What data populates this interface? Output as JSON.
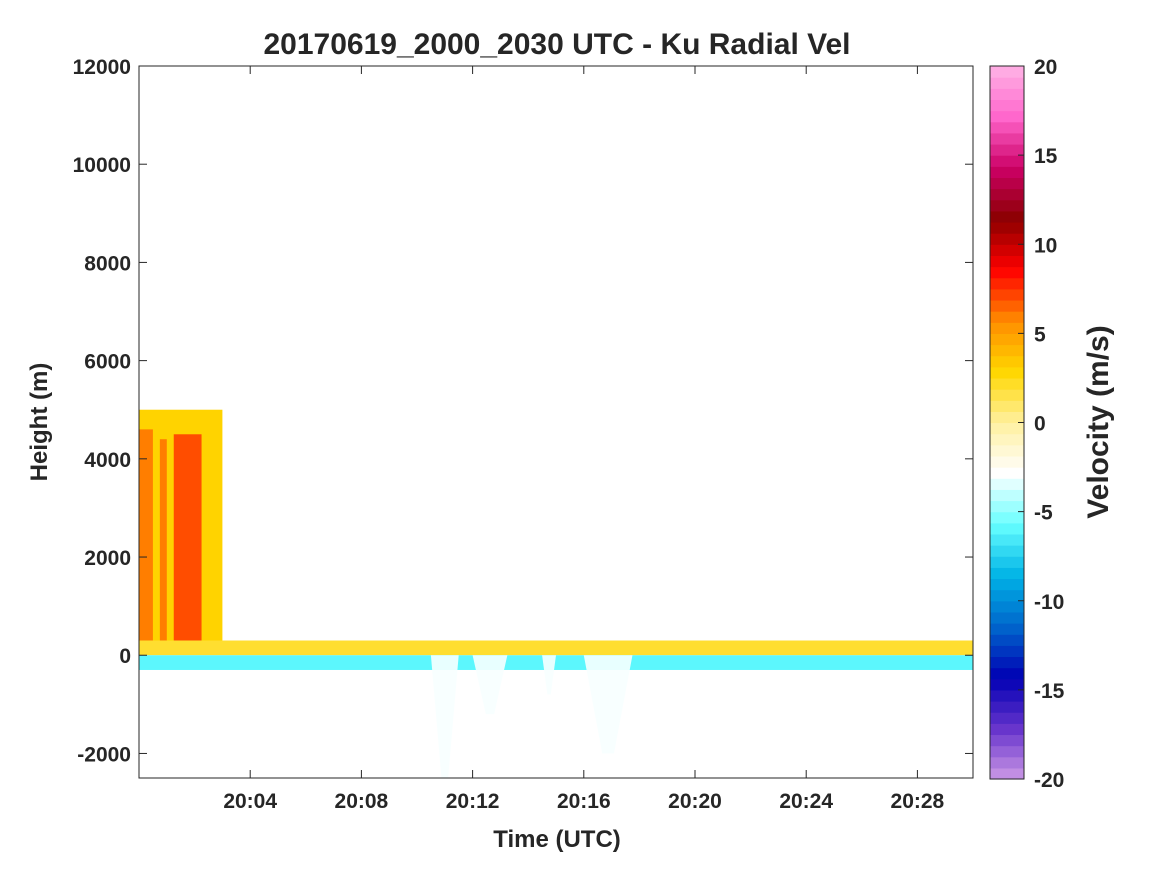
{
  "chart_data": {
    "type": "heatmap",
    "title": "20170619_2000_2030 UTC - Ku Radial Vel",
    "xlabel": "Time (UTC)",
    "ylabel": "Height (m)",
    "xlim": [
      "20:00",
      "20:30"
    ],
    "ylim": [
      -2500,
      12000
    ],
    "x_ticks": [
      "20:04",
      "20:08",
      "20:12",
      "20:16",
      "20:20",
      "20:24",
      "20:28"
    ],
    "y_ticks": [
      -2000,
      0,
      2000,
      4000,
      6000,
      8000,
      10000,
      12000
    ],
    "grid": false,
    "colorbar": {
      "label": "Velocity (m/s)",
      "range": [
        -20,
        20
      ],
      "ticks": [
        -20,
        -15,
        -10,
        -5,
        0,
        5,
        10,
        15,
        20
      ],
      "colors": [
        "#CC99E6",
        "#6633CC",
        "#0000B3",
        "#0066CC",
        "#00B3E6",
        "#66FFFF",
        "#FFFFFF",
        "#FFF0A0",
        "#FFD700",
        "#FF8C00",
        "#FF0000",
        "#8B0000",
        "#CC0066",
        "#FF66CC",
        "#FFB3E6"
      ]
    },
    "features": [
      {
        "name": "upper-layer-positive",
        "time_start": "20:00",
        "time_end": "20:03",
        "height_bottom": 200,
        "height_top": 5000,
        "velocity": 3
      },
      {
        "name": "fall-streak-1",
        "time_start": "20:00",
        "time_end": "20:00:30",
        "height_bottom": 300,
        "height_top": 4600,
        "velocity": 6
      },
      {
        "name": "fall-streak-2",
        "time_start": "20:00:45",
        "time_end": "20:01",
        "height_bottom": 300,
        "height_top": 4400,
        "velocity": 6
      },
      {
        "name": "fall-streak-3",
        "time_start": "20:01:15",
        "time_end": "20:02:15",
        "height_bottom": 300,
        "height_top": 4500,
        "velocity": 7
      },
      {
        "name": "surface-positive-band",
        "time_start": "20:00",
        "time_end": "20:30",
        "height_bottom": 0,
        "height_top": 300,
        "velocity": 2
      },
      {
        "name": "surface-negative-band",
        "time_start": "20:00",
        "time_end": "20:30",
        "height_bottom": -300,
        "height_top": 0,
        "velocity": -6
      },
      {
        "name": "downward-plume-1",
        "time_start": "20:10:30",
        "time_end": "20:11:30",
        "height_bottom": -2500,
        "height_top": 0,
        "velocity": -3
      },
      {
        "name": "downward-plume-2",
        "time_start": "20:12",
        "time_end": "20:13:15",
        "height_bottom": -1200,
        "height_top": 0,
        "velocity": -3
      },
      {
        "name": "downward-plume-3",
        "time_start": "20:14:30",
        "time_end": "20:15",
        "height_bottom": -800,
        "height_top": 0,
        "velocity": -3
      },
      {
        "name": "downward-plume-4",
        "time_start": "20:16",
        "time_end": "20:17:45",
        "height_bottom": -2000,
        "height_top": 0,
        "velocity": -3
      }
    ]
  }
}
